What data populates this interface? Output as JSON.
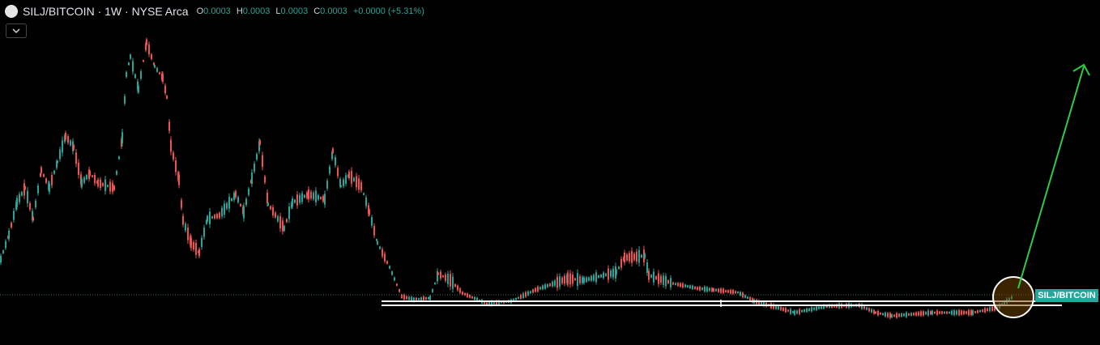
{
  "header": {
    "title": "SILJ/BITCOIN · 1W · NYSE Arca",
    "ohlc": [
      {
        "label": "O",
        "value": "0.0003"
      },
      {
        "label": "H",
        "value": "0.0003"
      },
      {
        "label": "L",
        "value": "0.0003"
      },
      {
        "label": "C",
        "value": "0.0003"
      }
    ],
    "change": "+0.0000 (+5.31%)"
  },
  "price_label": "SILJ/BITCOIN"
}
